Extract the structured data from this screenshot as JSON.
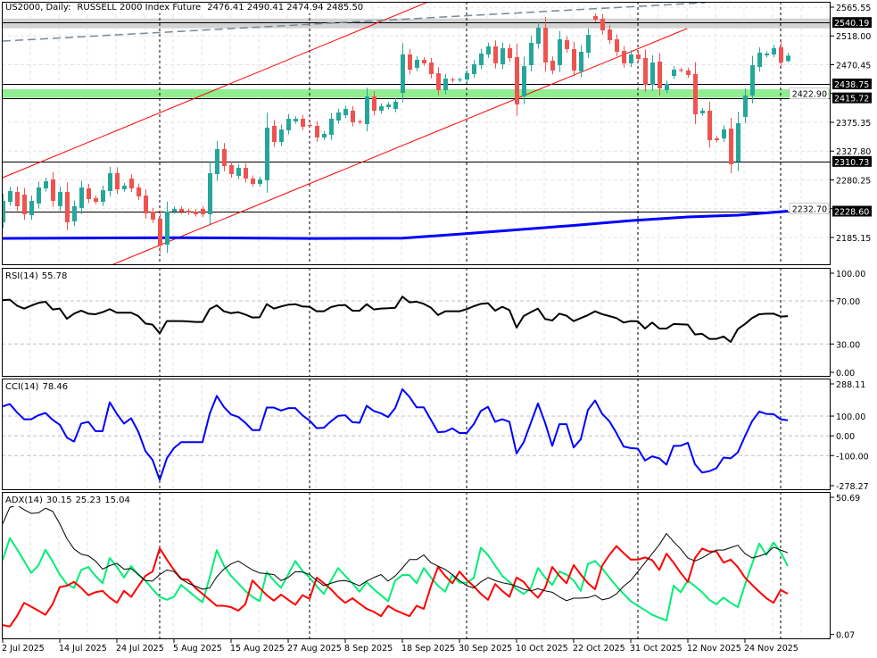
{
  "header": {
    "symbol": "US2000, Daily:",
    "instrument": "RUSSELL 2000 Index Future",
    "ohlc": "2476.41 2490.41 2474.94 2485.50"
  },
  "colors": {
    "bull": "#26a69a",
    "bear": "#ef5350",
    "ma": "#0000ff",
    "trend": "#ff0000",
    "long_line": "#778899",
    "band_gray": "#d3d3d3",
    "band_green": "#90ee90",
    "rsi": "#000000",
    "cci": "#0000ff",
    "adx": "#000000",
    "plus_di": "#00ee76",
    "minus_di": "#ff0000"
  },
  "chart_data": [
    {
      "type": "candlestick",
      "title": "US2000, Daily: RUSSELL 2000 Index Future",
      "ylim": [
        2139.4,
        2574.4
      ],
      "y_ticks": [
        "2565.55",
        "2518.00",
        "2470.45",
        "2422.90",
        "2375.35",
        "2327.80",
        "2280.25",
        "2232.70",
        "2185.15"
      ],
      "x_labels": [
        {
          "index": 0,
          "label": "2 Jul 2025"
        },
        {
          "index": 8,
          "label": "14 Jul 2025"
        },
        {
          "index": 16,
          "label": "24 Jul 2025"
        },
        {
          "index": 24,
          "label": "5 Aug 2025"
        },
        {
          "index": 32,
          "label": "15 Aug 2025"
        },
        {
          "index": 40,
          "label": "27 Aug 2025"
        },
        {
          "index": 48,
          "label": "8 Sep 2025"
        },
        {
          "index": 56,
          "label": "18 Sep 2025"
        },
        {
          "index": 64,
          "label": "30 Sep 2025"
        },
        {
          "index": 72,
          "label": "10 Oct 2025"
        },
        {
          "index": 80,
          "label": "22 Oct 2025"
        },
        {
          "index": 88,
          "label": "31 Oct 2025"
        },
        {
          "index": 96,
          "label": "12 Nov 2025"
        },
        {
          "index": 104,
          "label": "24 Nov 2025"
        }
      ],
      "period_separators": [
        22,
        43,
        65,
        89,
        109
      ],
      "open": [
        2210.2,
        2244.1,
        2260.3,
        2255.9,
        2222.0,
        2241.2,
        2266.2,
        2281.0,
        2236.7,
        2260.3,
        2211.7,
        2233.8,
        2266.2,
        2250.0,
        2244.1,
        2261.8,
        2291.3,
        2264.8,
        2282.5,
        2267.7,
        2254.4,
        2227.9,
        2216.1,
        2173.3,
        2227.9,
        2232.3,
        2229.4,
        2227.9,
        2232.3,
        2223.5,
        2289.8,
        2331.1,
        2304.6,
        2286.9,
        2300.1,
        2282.5,
        2273.6,
        2279.5,
        2369.5,
        2342.9,
        2362.1,
        2376.8,
        2381.2,
        2370.9,
        2369.5,
        2350.3,
        2354.7,
        2378.3,
        2387.1,
        2394.5,
        2376.8,
        2372.4,
        2418.1,
        2394.5,
        2400.4,
        2397.5,
        2424.0,
        2487.4,
        2465.3,
        2478.6,
        2474.1,
        2456.4,
        2428.4,
        2446.1,
        2444.6,
        2446.1,
        2455.0,
        2469.7,
        2487.4,
        2500.7,
        2471.2,
        2497.7,
        2483.0,
        2418.1,
        2469.7,
        2505.1,
        2531.6,
        2477.1,
        2469.7,
        2511.0,
        2496.3,
        2459.4,
        2490.4,
        2550.8,
        2546.4,
        2528.7,
        2512.5,
        2493.3,
        2472.7,
        2487.4,
        2481.5,
        2437.3,
        2475.6,
        2428.4,
        2452.0,
        2462.3,
        2460.9,
        2455.0,
        2390.1,
        2394.5,
        2348.8,
        2348.8,
        2365.0,
        2310.5,
        2384.2,
        2419.6,
        2466.8,
        2485.9,
        2487.4,
        2499.2,
        2476.41
      ],
      "close": [
        2245.6,
        2261.8,
        2236.7,
        2223.5,
        2245.6,
        2267.7,
        2278.0,
        2245.6,
        2260.3,
        2210.2,
        2236.7,
        2267.7,
        2248.5,
        2244.1,
        2263.3,
        2291.3,
        2264.8,
        2270.7,
        2266.2,
        2253.0,
        2224.9,
        2214.6,
        2171.9,
        2227.9,
        2232.3,
        2227.9,
        2226.4,
        2223.5,
        2223.5,
        2291.3,
        2331.1,
        2303.1,
        2289.8,
        2300.1,
        2282.5,
        2273.6,
        2281.0,
        2366.5,
        2342.9,
        2363.6,
        2381.2,
        2381.2,
        2368.0,
        2369.5,
        2350.3,
        2356.2,
        2381.2,
        2391.6,
        2397.5,
        2375.3,
        2375.3,
        2418.1,
        2394.5,
        2401.9,
        2404.8,
        2409.3,
        2487.4,
        2462.3,
        2478.6,
        2472.7,
        2455.0,
        2428.4,
        2447.6,
        2444.6,
        2446.1,
        2456.4,
        2471.2,
        2488.9,
        2500.7,
        2472.7,
        2497.7,
        2481.5,
        2404.8,
        2468.2,
        2506.6,
        2531.6,
        2474.1,
        2460.9,
        2512.5,
        2496.3,
        2460.9,
        2491.8,
        2519.8,
        2544.9,
        2527.2,
        2511.0,
        2491.8,
        2472.7,
        2487.4,
        2480.0,
        2437.3,
        2474.1,
        2431.4,
        2438.8,
        2462.3,
        2460.9,
        2453.5,
        2388.6,
        2394.5,
        2345.9,
        2345.9,
        2363.6,
        2306.0,
        2373.9,
        2419.6,
        2469.7,
        2490.4,
        2488.9,
        2497.7,
        2474.1,
        2485.5
      ],
      "last_bar": {
        "open": 2476.41,
        "high": 2490.41,
        "low": 2474.94,
        "close": 2485.5
      },
      "moving_average": [
        [
          0,
          2183.7
        ],
        [
          24,
          2184.8
        ],
        [
          44,
          2183.5
        ],
        [
          56,
          2184.0
        ],
        [
          62,
          2189.0
        ],
        [
          70,
          2196.0
        ],
        [
          80,
          2205.0
        ],
        [
          88,
          2213.0
        ],
        [
          96,
          2219.0
        ],
        [
          103,
          2222.0
        ],
        [
          110,
          2228.6
        ]
      ],
      "long_dashed_line": [
        [
          0,
          2509.5
        ],
        [
          98.4,
          2572.9
        ]
      ],
      "trendlines": [
        {
          "name": "upper-channel",
          "points": [
            [
              0,
              2283.9
            ],
            [
              60.25,
              2577.4
            ]
          ]
        },
        {
          "name": "lower-channel",
          "points": [
            [
              15,
              2138.4
            ],
            [
              95.9,
              2530.2
            ]
          ]
        }
      ],
      "bands": [
        {
          "name": "resistance-zone",
          "from": 2530.6,
          "to": 2546.8,
          "color": "#d3d3d3"
        },
        {
          "name": "support-zone",
          "from": 2416.0,
          "to": 2430.0,
          "color": "#90ee90"
        }
      ],
      "levels": [
        {
          "value": 2540.19,
          "label": "2540.19"
        },
        {
          "value": 2438.75,
          "label": "2438.75"
        },
        {
          "value": 2415.72,
          "label": "2415.72"
        },
        {
          "value": 2310.73,
          "label": "2310.73"
        },
        {
          "value": 2228.6,
          "label": "2228.60"
        }
      ]
    },
    {
      "type": "line",
      "title": "RSI(14)",
      "value_label": "55.78",
      "ylim": [
        -0.4,
        100.6
      ],
      "y_ticks": [
        "100.00",
        "70.00",
        "30.00",
        "0.00"
      ],
      "grid": [
        70,
        30
      ],
      "values": [
        70.6,
        71.1,
        65.6,
        62.8,
        65.6,
        68.1,
        69.2,
        62.0,
        62.8,
        53.4,
        58.1,
        60.9,
        58.1,
        57.6,
        59.5,
        62.3,
        59.0,
        59.0,
        59.0,
        55.9,
        49.0,
        47.9,
        39.9,
        51.2,
        51.2,
        51.2,
        50.9,
        50.4,
        50.4,
        62.3,
        65.8,
        60.3,
        58.6,
        59.5,
        57.3,
        54.5,
        54.8,
        66.9,
        62.8,
        64.8,
        66.4,
        66.9,
        64.8,
        64.5,
        60.3,
        60.3,
        64.2,
        65.8,
        66.1,
        60.9,
        60.9,
        66.9,
        62.0,
        62.8,
        63.1,
        63.6,
        73.9,
        68.6,
        69.2,
        67.2,
        63.7,
        56.8,
        60.3,
        60.3,
        60.3,
        62.3,
        65.0,
        67.2,
        67.8,
        60.9,
        64.5,
        61.4,
        45.2,
        55.9,
        59.5,
        62.8,
        53.2,
        51.8,
        58.1,
        56.2,
        51.2,
        54.0,
        56.8,
        60.3,
        57.6,
        55.9,
        54.0,
        49.9,
        51.2,
        51.0,
        44.3,
        49.9,
        44.3,
        44.3,
        48.5,
        48.2,
        47.9,
        38.8,
        39.4,
        34.7,
        34.7,
        36.9,
        31.9,
        43.8,
        48.5,
        54.0,
        57.6,
        58.1,
        58.1,
        55.4,
        55.78
      ]
    },
    {
      "type": "line",
      "title": "CCI(14)",
      "value_label": "78.46",
      "ylim": [
        -275,
        290
      ],
      "y_ticks": [
        "288.11",
        "100.00",
        "0.00",
        "-100.00",
        "-278.27"
      ],
      "grid": [
        100,
        0,
        -100
      ],
      "values": [
        149,
        161,
        119,
        84,
        84,
        104,
        116,
        81,
        56,
        -9,
        -29,
        62,
        71,
        24,
        24,
        170,
        111,
        62,
        89,
        21,
        -77,
        -122,
        -223,
        -114,
        -62,
        -32,
        -32,
        -32,
        -32,
        111,
        202,
        146,
        108,
        96,
        66,
        29,
        29,
        143,
        143,
        128,
        140,
        140,
        104,
        77,
        39,
        41,
        74,
        101,
        104,
        69,
        66,
        152,
        126,
        114,
        95,
        141,
        236,
        197,
        144,
        144,
        81,
        18,
        21,
        38,
        14,
        14,
        59,
        126,
        147,
        71,
        84,
        71,
        -89,
        -32,
        66,
        164,
        66,
        -51,
        59,
        59,
        -59,
        -17,
        131,
        179,
        111,
        74,
        14,
        -54,
        -62,
        -65,
        -125,
        -104,
        -114,
        -146,
        -51,
        -50,
        -35,
        -144,
        -186,
        -179,
        -164,
        -110,
        -114,
        -84,
        -2,
        74,
        123,
        111,
        110,
        84,
        78.46
      ]
    },
    {
      "type": "line",
      "title": "ADX(14)",
      "value_labels": [
        "30.15",
        "25.23",
        "15.04"
      ],
      "ylim": [
        -1.7,
        52.5
      ],
      "y_ticks": [
        "50.69",
        "0.07"
      ],
      "series": [
        {
          "name": "ADX",
          "values": [
            40.8,
            46.8,
            47.7,
            46.0,
            44.6,
            44.8,
            46.5,
            45.4,
            40.8,
            35.3,
            31.5,
            29.6,
            29.0,
            27.1,
            24.1,
            25.4,
            26.2,
            24.1,
            24.3,
            22.1,
            19.9,
            19.7,
            22.1,
            23.8,
            23.2,
            20.5,
            18.9,
            17.8,
            16.7,
            17.2,
            21.3,
            24.1,
            26.0,
            27.1,
            25.4,
            23.8,
            22.7,
            22.4,
            22.1,
            19.9,
            21.0,
            23.2,
            23.0,
            22.1,
            19.9,
            18.0,
            18.9,
            19.7,
            19.9,
            19.1,
            18.0,
            19.7,
            21.0,
            22.1,
            19.7,
            21.6,
            24.5,
            27.6,
            27.6,
            29.3,
            26.5,
            25.2,
            24.0,
            22.1,
            19.9,
            18.0,
            17.2,
            19.4,
            21.0,
            19.9,
            19.1,
            18.6,
            17.8,
            16.7,
            16.1,
            16.9,
            16.1,
            15.6,
            13.9,
            12.5,
            13.4,
            13.4,
            13.6,
            14.5,
            12.8,
            13.4,
            15.0,
            17.8,
            19.9,
            23.2,
            26.5,
            29.8,
            33.1,
            37.2,
            34.2,
            31.5,
            28.2,
            27.1,
            28.2,
            29.8,
            31.1,
            31.1,
            32.0,
            32.9,
            29.8,
            28.2,
            28.9,
            29.8,
            32.2,
            31.1,
            30.15
          ]
        },
        {
          "name": "+DI",
          "values": [
            27.4,
            35.5,
            31.5,
            27.1,
            22.7,
            25.4,
            31.2,
            26.9,
            22.1,
            18.6,
            17.2,
            23.8,
            24.9,
            21.6,
            18.9,
            28.2,
            24.9,
            21.0,
            25.2,
            22.1,
            19.9,
            16.7,
            13.9,
            12.8,
            13.9,
            18.3,
            16.1,
            13.9,
            11.9,
            21.0,
            31.1,
            25.4,
            21.6,
            18.9,
            16.1,
            13.9,
            12.3,
            23.0,
            19.9,
            17.2,
            22.1,
            27.1,
            23.5,
            21.0,
            17.8,
            15.0,
            19.9,
            24.5,
            21.6,
            18.9,
            15.8,
            19.4,
            16.7,
            14.5,
            12.3,
            19.9,
            21.9,
            21.9,
            18.9,
            24.5,
            21.0,
            18.0,
            15.8,
            21.9,
            19.1,
            19.1,
            20.8,
            32.0,
            29.3,
            25.4,
            21.6,
            19.4,
            16.7,
            15.0,
            17.2,
            24.5,
            21.0,
            18.3,
            23.2,
            22.1,
            19.9,
            16.1,
            26.0,
            27.1,
            24.3,
            21.0,
            17.8,
            15.0,
            12.3,
            10.6,
            9.0,
            7.3,
            6.2,
            5.2,
            18.0,
            15.6,
            19.9,
            17.8,
            15.6,
            12.8,
            11.2,
            13.6,
            11.7,
            10.1,
            18.3,
            26.0,
            33.5,
            29.3,
            33.9,
            30.4,
            25.23
          ]
        },
        {
          "name": "-DI",
          "values": [
            3.5,
            3.0,
            6.8,
            11.7,
            10.3,
            8.8,
            7.3,
            11.2,
            17.5,
            18.0,
            19.4,
            17.2,
            14.5,
            15.6,
            16.1,
            13.6,
            11.7,
            16.1,
            13.9,
            17.8,
            21.6,
            23.2,
            31.8,
            27.6,
            23.8,
            20.5,
            20.2,
            17.2,
            15.0,
            12.8,
            10.6,
            10.6,
            10.1,
            8.8,
            11.2,
            19.9,
            17.2,
            14.5,
            12.5,
            14.7,
            12.8,
            11.0,
            14.5,
            13.2,
            21.0,
            18.9,
            16.7,
            13.9,
            11.7,
            13.4,
            11.4,
            9.5,
            8.4,
            6.8,
            10.6,
            9.0,
            7.9,
            6.8,
            10.6,
            9.5,
            17.8,
            24.9,
            21.6,
            18.9,
            23.2,
            20.2,
            17.8,
            15.0,
            12.8,
            18.6,
            16.1,
            13.9,
            21.0,
            19.4,
            16.1,
            13.6,
            17.2,
            24.9,
            21.6,
            18.9,
            25.6,
            22.1,
            18.9,
            16.7,
            25.4,
            29.3,
            32.6,
            30.0,
            27.6,
            27.6,
            28.4,
            27.4,
            23.8,
            29.8,
            26.5,
            22.7,
            19.4,
            28.2,
            31.7,
            30.6,
            30.6,
            26.5,
            27.6,
            24.9,
            21.0,
            18.3,
            15.8,
            13.4,
            11.7,
            16.4,
            15.04
          ]
        }
      ]
    }
  ]
}
